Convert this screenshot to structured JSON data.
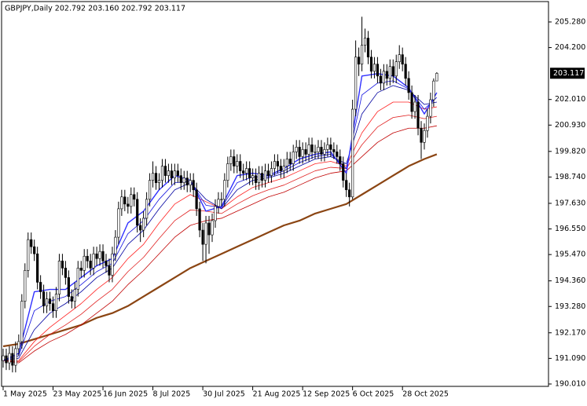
{
  "chart_data": {
    "type": "candlestick",
    "title": "GBPJPY,Daily  202.792 203.160 202.792 203.117",
    "xlim": [
      -0.5,
      174.8
    ],
    "ylim": [
      189.91,
      206.14
    ],
    "yticks": [
      {
        "value": 205.28,
        "label": "205.280"
      },
      {
        "value": 204.2,
        "label": "204.200"
      },
      {
        "value": 202.01,
        "label": "202.010"
      },
      {
        "value": 200.93,
        "label": "200.930"
      },
      {
        "value": 199.82,
        "label": "199.820"
      },
      {
        "value": 198.74,
        "label": "198.740"
      },
      {
        "value": 197.63,
        "label": "197.630"
      },
      {
        "value": 196.55,
        "label": "196.550"
      },
      {
        "value": 195.47,
        "label": "195.470"
      },
      {
        "value": 194.36,
        "label": "194.360"
      },
      {
        "value": 193.28,
        "label": "193.280"
      },
      {
        "value": 192.17,
        "label": "192.170"
      },
      {
        "value": 191.09,
        "label": "191.090"
      },
      {
        "value": 190.01,
        "label": "190.010"
      }
    ],
    "xticks": [
      {
        "value": 0,
        "label": "1 May 2025"
      },
      {
        "value": 16,
        "label": "23 May 2025"
      },
      {
        "value": 32,
        "label": "16 Jun 2025"
      },
      {
        "value": 48,
        "label": "8 Jul 2025"
      },
      {
        "value": 64,
        "label": "30 Jul 2025"
      },
      {
        "value": 80,
        "label": "21 Aug 2025"
      },
      {
        "value": 96,
        "label": "12 Sep 2025"
      },
      {
        "value": 112,
        "label": "6 Oct 2025"
      },
      {
        "value": 128,
        "label": "28 Oct 2025"
      }
    ],
    "up_color": "#ffffff",
    "down_color": "#000000",
    "open": [
      191.0,
      191.2,
      190.9,
      191.3,
      190.8,
      191.5,
      191.8,
      193.5,
      194.8,
      196.1,
      195.8,
      195.5,
      194.3,
      193.9,
      193.3,
      193.6,
      193.4,
      193.1,
      193.8,
      195.2,
      194.9,
      194.5,
      193.7,
      193.5,
      194.0,
      194.9,
      194.8,
      195.4,
      195.2,
      194.9,
      195.5,
      195.3,
      195.6,
      195.2,
      195.0,
      194.6,
      195.5,
      196.2,
      197.4,
      197.9,
      197.6,
      197.5,
      198.0,
      197.8,
      196.7,
      196.5,
      197.0,
      197.8,
      198.6,
      198.9,
      198.5,
      198.6,
      199.2,
      198.8,
      199.0,
      198.7,
      199.0,
      198.8,
      198.5,
      198.7,
      198.4,
      198.6,
      198.2,
      197.4,
      196.5,
      195.9,
      196.8,
      196.3,
      196.9,
      197.5,
      197.8,
      197.8,
      198.6,
      199.3,
      199.6,
      199.2,
      199.4,
      199.0,
      198.9,
      199.1,
      198.7,
      198.8,
      198.5,
      198.9,
      198.6,
      199.0,
      198.8,
      199.1,
      199.4,
      199.2,
      199.0,
      199.2,
      199.5,
      199.3,
      199.8,
      200.0,
      199.6,
      199.9,
      199.7,
      200.1,
      199.8,
      199.8,
      200.0,
      199.7,
      199.9,
      200.1,
      199.9,
      199.8,
      199.6,
      199.3,
      198.6,
      198.2,
      197.9,
      201.6,
      203.8,
      203.5,
      204.3,
      204.6,
      203.8,
      203.2,
      203.5,
      203.0,
      202.7,
      203.2,
      202.9,
      203.4,
      203.0,
      203.6,
      203.9,
      203.5,
      202.9,
      202.3,
      201.5,
      201.9,
      200.8,
      200.2,
      200.7,
      201.3,
      202.0,
      202.792
    ],
    "high": [
      191.5,
      191.5,
      191.6,
      191.6,
      191.8,
      192.1,
      193.8,
      195.1,
      196.4,
      196.4,
      196.1,
      195.8,
      194.6,
      194.2,
      193.9,
      193.9,
      193.7,
      194.1,
      195.5,
      195.5,
      195.2,
      194.8,
      194.0,
      194.3,
      195.2,
      195.2,
      195.7,
      195.7,
      195.5,
      195.8,
      195.8,
      195.9,
      195.9,
      195.5,
      195.3,
      195.8,
      196.5,
      197.7,
      198.2,
      198.2,
      197.9,
      198.3,
      198.3,
      198.1,
      197.0,
      197.3,
      198.1,
      198.9,
      199.4,
      199.2,
      198.9,
      199.5,
      199.5,
      199.3,
      199.3,
      199.3,
      199.3,
      199.1,
      199.0,
      199.0,
      198.9,
      198.9,
      198.5,
      197.7,
      196.8,
      197.1,
      197.1,
      197.2,
      197.8,
      198.1,
      198.1,
      198.9,
      199.6,
      199.9,
      199.9,
      199.7,
      199.7,
      199.3,
      199.4,
      199.4,
      199.1,
      199.1,
      199.2,
      199.2,
      199.3,
      199.3,
      199.4,
      199.7,
      199.7,
      199.5,
      199.5,
      199.8,
      199.8,
      200.1,
      200.3,
      200.3,
      200.2,
      200.2,
      200.4,
      200.4,
      200.1,
      200.3,
      200.3,
      200.2,
      200.4,
      200.4,
      200.2,
      200.1,
      199.9,
      199.6,
      198.9,
      198.5,
      202.0,
      204.5,
      204.2,
      205.5,
      205.0,
      204.9,
      204.1,
      203.8,
      203.8,
      203.3,
      203.5,
      203.5,
      203.7,
      203.7,
      203.9,
      204.3,
      204.2,
      203.8,
      203.2,
      202.6,
      202.2,
      202.2,
      201.1,
      201.0,
      201.6,
      202.3,
      202.9,
      203.16
    ],
    "low": [
      190.7,
      190.6,
      190.6,
      190.5,
      190.5,
      191.2,
      191.5,
      193.2,
      194.5,
      195.5,
      195.2,
      194.0,
      193.6,
      193.0,
      193.0,
      193.1,
      192.8,
      192.8,
      193.5,
      194.6,
      194.2,
      193.4,
      193.2,
      193.2,
      193.7,
      194.5,
      194.5,
      194.9,
      194.6,
      194.6,
      195.0,
      195.0,
      194.9,
      194.7,
      194.3,
      194.3,
      195.2,
      195.9,
      197.1,
      197.3,
      197.2,
      197.2,
      197.5,
      196.4,
      196.0,
      196.2,
      196.7,
      197.5,
      198.3,
      198.2,
      198.2,
      198.3,
      198.5,
      198.5,
      198.4,
      198.4,
      198.5,
      198.2,
      198.2,
      198.1,
      198.1,
      197.9,
      197.1,
      196.2,
      195.2,
      195.1,
      195.5,
      196.0,
      196.6,
      197.2,
      197.5,
      197.5,
      198.3,
      199.0,
      198.9,
      198.9,
      198.7,
      198.6,
      198.6,
      198.4,
      198.4,
      198.2,
      198.2,
      198.3,
      198.3,
      198.5,
      198.5,
      198.8,
      198.9,
      198.7,
      198.7,
      198.9,
      199.0,
      199.0,
      199.5,
      199.3,
      199.3,
      199.4,
      199.4,
      199.5,
      199.5,
      199.5,
      199.4,
      199.4,
      199.6,
      199.6,
      199.5,
      199.3,
      199.0,
      198.3,
      197.9,
      197.5,
      197.8,
      201.3,
      203.0,
      203.2,
      204.0,
      203.5,
      202.9,
      202.9,
      202.7,
      202.4,
      202.4,
      202.6,
      202.6,
      202.7,
      202.7,
      203.3,
      203.2,
      202.6,
      202.0,
      201.2,
      201.2,
      200.5,
      199.5,
      199.9,
      200.4,
      201.0,
      201.7,
      202.792
    ],
    "close": [
      191.2,
      190.9,
      191.3,
      190.8,
      191.5,
      191.8,
      193.5,
      194.8,
      196.1,
      195.8,
      195.5,
      194.3,
      193.9,
      193.3,
      193.6,
      193.4,
      193.1,
      193.8,
      195.2,
      194.9,
      194.5,
      193.7,
      193.5,
      194.0,
      194.9,
      194.8,
      195.4,
      195.2,
      194.9,
      195.5,
      195.3,
      195.6,
      195.2,
      195.0,
      194.6,
      195.5,
      196.2,
      197.4,
      197.9,
      197.6,
      197.5,
      198.0,
      197.8,
      196.7,
      196.5,
      197.0,
      197.8,
      198.6,
      198.9,
      198.5,
      198.6,
      199.2,
      198.8,
      199.0,
      198.7,
      199.0,
      198.8,
      198.5,
      198.7,
      198.4,
      198.6,
      198.2,
      197.4,
      196.5,
      195.9,
      196.8,
      196.3,
      196.9,
      197.5,
      197.8,
      197.8,
      198.6,
      199.3,
      199.6,
      199.2,
      199.4,
      199.0,
      198.9,
      199.1,
      198.7,
      198.8,
      198.5,
      198.9,
      198.6,
      199.0,
      198.8,
      199.1,
      199.4,
      199.2,
      199.0,
      199.2,
      199.5,
      199.3,
      199.8,
      200.0,
      199.6,
      199.9,
      199.7,
      200.1,
      199.8,
      199.8,
      200.0,
      199.7,
      199.9,
      200.1,
      199.9,
      199.8,
      199.6,
      199.3,
      198.6,
      198.2,
      197.9,
      201.6,
      203.8,
      203.5,
      204.3,
      204.6,
      203.8,
      203.2,
      203.5,
      203.0,
      202.7,
      203.2,
      202.9,
      203.4,
      203.0,
      203.6,
      203.9,
      203.5,
      202.9,
      202.3,
      201.5,
      201.9,
      200.8,
      200.2,
      200.7,
      201.3,
      202.0,
      202.79,
      203.117
    ],
    "ma_x": [
      0,
      5,
      10,
      15,
      20,
      25,
      30,
      35,
      40,
      45,
      50,
      55,
      60,
      65,
      70,
      75,
      80,
      85,
      90,
      95,
      100,
      105,
      110,
      115,
      120,
      125,
      130,
      135,
      139
    ],
    "series": [
      {
        "color": "#8b4513",
        "width": 2.2,
        "values": [
          191.6,
          191.7,
          191.9,
          192.1,
          192.3,
          192.5,
          192.8,
          193.0,
          193.3,
          193.7,
          194.1,
          194.5,
          194.9,
          195.2,
          195.5,
          195.8,
          196.1,
          196.4,
          196.7,
          196.9,
          197.2,
          197.4,
          197.6,
          198.0,
          198.4,
          198.8,
          199.2,
          199.5,
          199.7
        ]
      },
      {
        "color": "#c00000",
        "width": 0.8,
        "values": [
          191.0,
          190.9,
          191.4,
          191.8,
          192.1,
          192.5,
          193.0,
          193.5,
          194.2,
          194.8,
          195.5,
          196.2,
          196.7,
          196.9,
          197.0,
          197.3,
          197.6,
          197.9,
          198.1,
          198.4,
          198.7,
          198.9,
          199.0,
          199.6,
          200.2,
          200.6,
          200.8,
          200.8,
          200.9
        ]
      },
      {
        "color": "#e02020",
        "width": 0.8,
        "values": [
          191.0,
          190.95,
          191.6,
          192.1,
          192.5,
          192.95,
          193.5,
          194.0,
          194.75,
          195.35,
          196.15,
          196.9,
          197.35,
          197.3,
          197.2,
          197.6,
          197.95,
          198.2,
          198.4,
          198.7,
          199.0,
          199.15,
          199.1,
          200.1,
          200.85,
          201.25,
          201.35,
          201.2,
          201.3
        ]
      },
      {
        "color": "#ff2020",
        "width": 0.8,
        "values": [
          191.0,
          191.0,
          191.8,
          192.4,
          192.9,
          193.4,
          194.0,
          194.5,
          195.3,
          195.9,
          196.8,
          197.6,
          198.0,
          197.7,
          197.4,
          197.9,
          198.3,
          198.5,
          198.7,
          199.0,
          199.3,
          199.4,
          199.2,
          200.6,
          201.5,
          201.9,
          201.9,
          201.6,
          201.7
        ]
      },
      {
        "color": "#0000a0",
        "width": 0.8,
        "values": [
          191.0,
          191.1,
          192.3,
          193.0,
          193.4,
          193.9,
          194.5,
          194.9,
          195.9,
          196.5,
          197.4,
          198.2,
          198.5,
          197.8,
          197.4,
          198.2,
          198.6,
          198.7,
          198.9,
          199.2,
          199.5,
          199.6,
          199.3,
          201.4,
          202.3,
          202.6,
          202.4,
          201.8,
          201.9
        ]
      },
      {
        "color": "#1010e0",
        "width": 0.8,
        "values": [
          191.0,
          191.2,
          193.1,
          193.5,
          193.7,
          194.2,
          194.75,
          195.1,
          196.35,
          196.9,
          197.8,
          198.5,
          198.55,
          197.55,
          197.45,
          198.5,
          198.75,
          198.75,
          199.0,
          199.35,
          199.6,
          199.7,
          199.1,
          202.2,
          202.7,
          202.8,
          202.45,
          201.6,
          202.1
        ]
      },
      {
        "color": "#3030ff",
        "width": 1.4,
        "values": [
          191.0,
          191.3,
          193.9,
          194.0,
          194.0,
          194.5,
          195.0,
          195.3,
          196.8,
          197.3,
          198.2,
          198.8,
          198.6,
          197.3,
          197.5,
          198.8,
          198.9,
          198.8,
          199.1,
          199.5,
          199.7,
          199.8,
          198.9,
          203.0,
          203.1,
          203.0,
          202.5,
          201.4,
          202.3
        ]
      }
    ]
  }
}
